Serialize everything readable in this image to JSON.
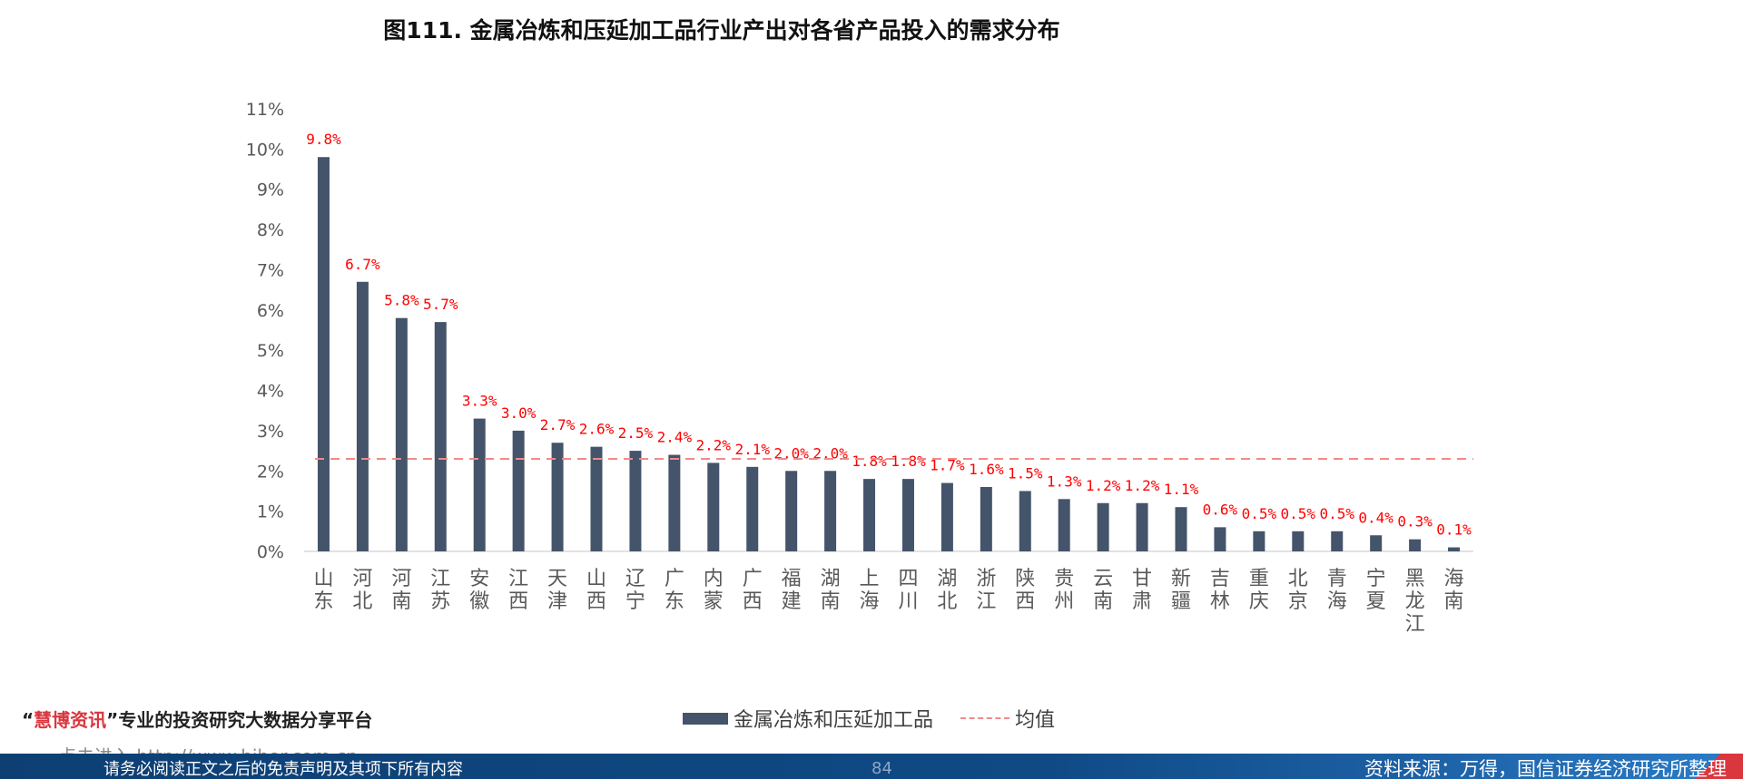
{
  "page": {
    "title": "图111. 金属冶炼和压延加工品行业产出对各省产品投入的需求分布",
    "promo": {
      "quote_open": "“",
      "brand": "慧博资讯",
      "quote_close": "”",
      "text": "专业的投资研究大数据分享平台"
    },
    "watermark": "点击进入 http://www.hibor.com.cn",
    "footer": {
      "disclaimer": "请务必阅读正文之后的免责声明及其项下所有内容",
      "page_number": "84",
      "source": "资料来源：万得，国信证券经济研究所整理"
    }
  },
  "colors": {
    "bar": "#44546a",
    "label": "#ff0000",
    "mean_line": "#f08a8a",
    "axis_text": "#595959"
  },
  "chart_data": {
    "type": "bar",
    "categories": [
      "山东",
      "河北",
      "河南",
      "江苏",
      "安徽",
      "江西",
      "天津",
      "山西",
      "辽宁",
      "广东",
      "内蒙",
      "广西",
      "福建",
      "湖南",
      "上海",
      "四川",
      "湖北",
      "浙江",
      "陕西",
      "贵州",
      "云南",
      "甘肃",
      "新疆",
      "吉林",
      "重庆",
      "北京",
      "青海",
      "宁夏",
      "黑龙江",
      "海南"
    ],
    "values": [
      9.8,
      6.7,
      5.8,
      5.7,
      3.3,
      3.0,
      2.7,
      2.6,
      2.5,
      2.4,
      2.2,
      2.1,
      2.0,
      2.0,
      1.8,
      1.8,
      1.7,
      1.6,
      1.5,
      1.3,
      1.2,
      1.2,
      1.1,
      0.6,
      0.5,
      0.5,
      0.5,
      0.4,
      0.3,
      0.1
    ],
    "value_labels": [
      "9.8%",
      "6.7%",
      "5.8%",
      "5.7%",
      "3.3%",
      "3.0%",
      "2.7%",
      "2.6%",
      "2.5%",
      "2.4%",
      "2.2%",
      "2.1%",
      "2.0%",
      "2.0%",
      "1.8%",
      "1.8%",
      "1.7%",
      "1.6%",
      "1.5%",
      "1.3%",
      "1.2%",
      "1.2%",
      "1.1%",
      "0.6%",
      "0.5%",
      "0.5%",
      "0.5%",
      "0.4%",
      "0.3%",
      "0.1%"
    ],
    "mean": 2.3,
    "ylim": [
      0,
      11
    ],
    "yticks": [
      0,
      1,
      2,
      3,
      4,
      5,
      6,
      7,
      8,
      9,
      10,
      11
    ],
    "ytick_labels": [
      "0%",
      "1%",
      "2%",
      "3%",
      "4%",
      "5%",
      "6%",
      "7%",
      "8%",
      "9%",
      "10%",
      "11%"
    ],
    "legend": {
      "bar_label": "金属冶炼和压延加工品",
      "mean_label": "均值",
      "placement": "bottom"
    },
    "grid": false
  }
}
